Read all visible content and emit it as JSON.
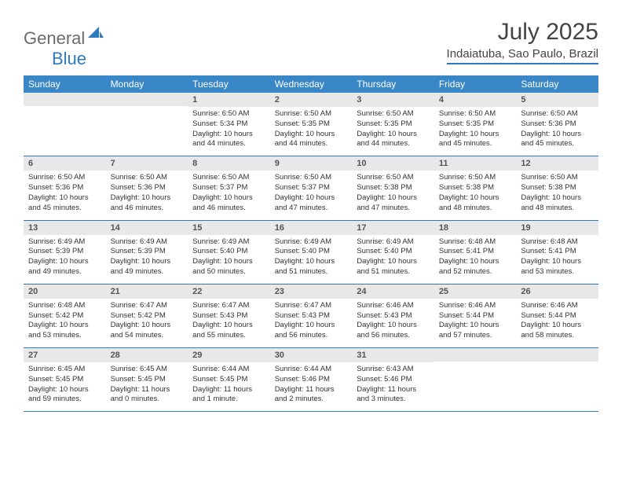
{
  "logo": {
    "text_gray": "General",
    "text_blue": "Blue"
  },
  "title": "July 2025",
  "location": "Indaiatuba, Sao Paulo, Brazil",
  "colors": {
    "header_bg": "#3a87c8",
    "header_text": "#ffffff",
    "daynum_bg": "#e8e8e8",
    "border": "#2f7abf",
    "logo_gray": "#6b6b6b",
    "logo_blue": "#2f7abf"
  },
  "day_headers": [
    "Sunday",
    "Monday",
    "Tuesday",
    "Wednesday",
    "Thursday",
    "Friday",
    "Saturday"
  ],
  "weeks": [
    [
      {
        "n": "",
        "sr": "",
        "ss": "",
        "dl": ""
      },
      {
        "n": "",
        "sr": "",
        "ss": "",
        "dl": ""
      },
      {
        "n": "1",
        "sr": "Sunrise: 6:50 AM",
        "ss": "Sunset: 5:34 PM",
        "dl": "Daylight: 10 hours and 44 minutes."
      },
      {
        "n": "2",
        "sr": "Sunrise: 6:50 AM",
        "ss": "Sunset: 5:35 PM",
        "dl": "Daylight: 10 hours and 44 minutes."
      },
      {
        "n": "3",
        "sr": "Sunrise: 6:50 AM",
        "ss": "Sunset: 5:35 PM",
        "dl": "Daylight: 10 hours and 44 minutes."
      },
      {
        "n": "4",
        "sr": "Sunrise: 6:50 AM",
        "ss": "Sunset: 5:35 PM",
        "dl": "Daylight: 10 hours and 45 minutes."
      },
      {
        "n": "5",
        "sr": "Sunrise: 6:50 AM",
        "ss": "Sunset: 5:36 PM",
        "dl": "Daylight: 10 hours and 45 minutes."
      }
    ],
    [
      {
        "n": "6",
        "sr": "Sunrise: 6:50 AM",
        "ss": "Sunset: 5:36 PM",
        "dl": "Daylight: 10 hours and 45 minutes."
      },
      {
        "n": "7",
        "sr": "Sunrise: 6:50 AM",
        "ss": "Sunset: 5:36 PM",
        "dl": "Daylight: 10 hours and 46 minutes."
      },
      {
        "n": "8",
        "sr": "Sunrise: 6:50 AM",
        "ss": "Sunset: 5:37 PM",
        "dl": "Daylight: 10 hours and 46 minutes."
      },
      {
        "n": "9",
        "sr": "Sunrise: 6:50 AM",
        "ss": "Sunset: 5:37 PM",
        "dl": "Daylight: 10 hours and 47 minutes."
      },
      {
        "n": "10",
        "sr": "Sunrise: 6:50 AM",
        "ss": "Sunset: 5:38 PM",
        "dl": "Daylight: 10 hours and 47 minutes."
      },
      {
        "n": "11",
        "sr": "Sunrise: 6:50 AM",
        "ss": "Sunset: 5:38 PM",
        "dl": "Daylight: 10 hours and 48 minutes."
      },
      {
        "n": "12",
        "sr": "Sunrise: 6:50 AM",
        "ss": "Sunset: 5:38 PM",
        "dl": "Daylight: 10 hours and 48 minutes."
      }
    ],
    [
      {
        "n": "13",
        "sr": "Sunrise: 6:49 AM",
        "ss": "Sunset: 5:39 PM",
        "dl": "Daylight: 10 hours and 49 minutes."
      },
      {
        "n": "14",
        "sr": "Sunrise: 6:49 AM",
        "ss": "Sunset: 5:39 PM",
        "dl": "Daylight: 10 hours and 49 minutes."
      },
      {
        "n": "15",
        "sr": "Sunrise: 6:49 AM",
        "ss": "Sunset: 5:40 PM",
        "dl": "Daylight: 10 hours and 50 minutes."
      },
      {
        "n": "16",
        "sr": "Sunrise: 6:49 AM",
        "ss": "Sunset: 5:40 PM",
        "dl": "Daylight: 10 hours and 51 minutes."
      },
      {
        "n": "17",
        "sr": "Sunrise: 6:49 AM",
        "ss": "Sunset: 5:40 PM",
        "dl": "Daylight: 10 hours and 51 minutes."
      },
      {
        "n": "18",
        "sr": "Sunrise: 6:48 AM",
        "ss": "Sunset: 5:41 PM",
        "dl": "Daylight: 10 hours and 52 minutes."
      },
      {
        "n": "19",
        "sr": "Sunrise: 6:48 AM",
        "ss": "Sunset: 5:41 PM",
        "dl": "Daylight: 10 hours and 53 minutes."
      }
    ],
    [
      {
        "n": "20",
        "sr": "Sunrise: 6:48 AM",
        "ss": "Sunset: 5:42 PM",
        "dl": "Daylight: 10 hours and 53 minutes."
      },
      {
        "n": "21",
        "sr": "Sunrise: 6:47 AM",
        "ss": "Sunset: 5:42 PM",
        "dl": "Daylight: 10 hours and 54 minutes."
      },
      {
        "n": "22",
        "sr": "Sunrise: 6:47 AM",
        "ss": "Sunset: 5:43 PM",
        "dl": "Daylight: 10 hours and 55 minutes."
      },
      {
        "n": "23",
        "sr": "Sunrise: 6:47 AM",
        "ss": "Sunset: 5:43 PM",
        "dl": "Daylight: 10 hours and 56 minutes."
      },
      {
        "n": "24",
        "sr": "Sunrise: 6:46 AM",
        "ss": "Sunset: 5:43 PM",
        "dl": "Daylight: 10 hours and 56 minutes."
      },
      {
        "n": "25",
        "sr": "Sunrise: 6:46 AM",
        "ss": "Sunset: 5:44 PM",
        "dl": "Daylight: 10 hours and 57 minutes."
      },
      {
        "n": "26",
        "sr": "Sunrise: 6:46 AM",
        "ss": "Sunset: 5:44 PM",
        "dl": "Daylight: 10 hours and 58 minutes."
      }
    ],
    [
      {
        "n": "27",
        "sr": "Sunrise: 6:45 AM",
        "ss": "Sunset: 5:45 PM",
        "dl": "Daylight: 10 hours and 59 minutes."
      },
      {
        "n": "28",
        "sr": "Sunrise: 6:45 AM",
        "ss": "Sunset: 5:45 PM",
        "dl": "Daylight: 11 hours and 0 minutes."
      },
      {
        "n": "29",
        "sr": "Sunrise: 6:44 AM",
        "ss": "Sunset: 5:45 PM",
        "dl": "Daylight: 11 hours and 1 minute."
      },
      {
        "n": "30",
        "sr": "Sunrise: 6:44 AM",
        "ss": "Sunset: 5:46 PM",
        "dl": "Daylight: 11 hours and 2 minutes."
      },
      {
        "n": "31",
        "sr": "Sunrise: 6:43 AM",
        "ss": "Sunset: 5:46 PM",
        "dl": "Daylight: 11 hours and 3 minutes."
      },
      {
        "n": "",
        "sr": "",
        "ss": "",
        "dl": ""
      },
      {
        "n": "",
        "sr": "",
        "ss": "",
        "dl": ""
      }
    ]
  ]
}
